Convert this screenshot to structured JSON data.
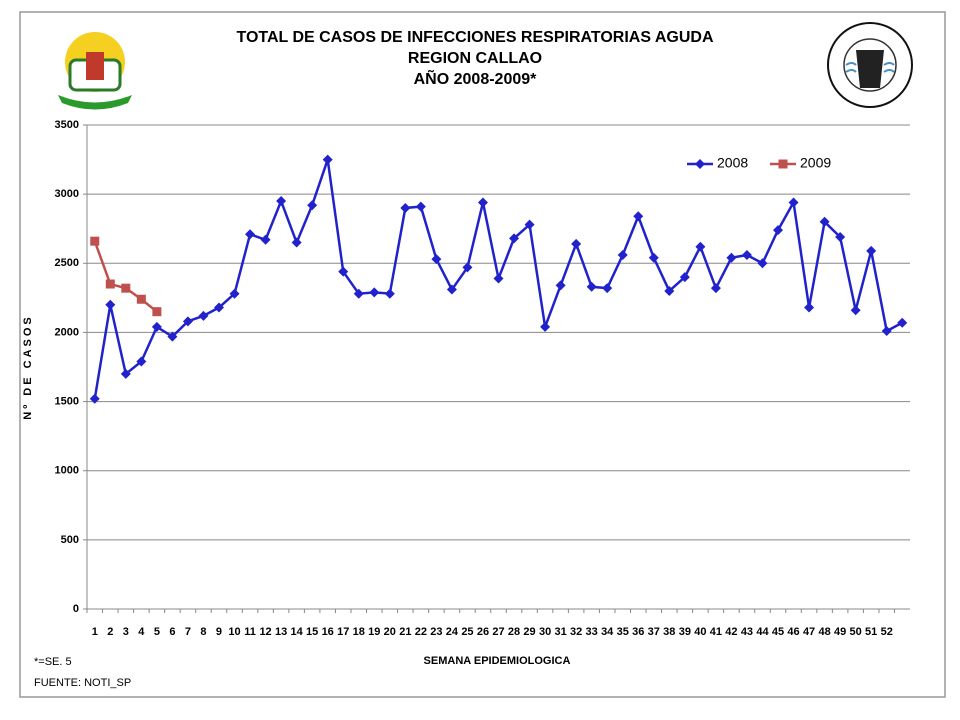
{
  "chart_data": {
    "type": "line",
    "title_lines": [
      "TOTAL DE CASOS DE INFECCIONES RESPIRATORIAS AGUDA",
      "REGION  CALLAO",
      "AÑO 2008-2009*"
    ],
    "y_label": "Nº DE CASOS",
    "x_label": "SEMANA EPIDEMIOLOGICA",
    "notes": [
      "*=SE. 5",
      "FUENTE: NOTI_SP"
    ],
    "categories": [
      "1",
      "2",
      "3",
      "4",
      "5",
      "6",
      "7",
      "8",
      "9",
      "10",
      "11",
      "12",
      "13",
      "14",
      "15",
      "16",
      "17",
      "18",
      "19",
      "20",
      "21",
      "22",
      "23",
      "24",
      "25",
      "26",
      "27",
      "28",
      "29",
      "30",
      "31",
      "32",
      "33",
      "34",
      "35",
      "36",
      "37",
      "38",
      "39",
      "40",
      "41",
      "42",
      "43",
      "44",
      "45",
      "46",
      "47",
      "48",
      "49",
      "50",
      "51",
      "52",
      null
    ],
    "series": [
      {
        "name": "2008",
        "color": "#2222cc",
        "marker": "diamond",
        "values": [
          1520,
          2200,
          1700,
          1790,
          2040,
          1970,
          2080,
          2120,
          2180,
          2280,
          2710,
          2670,
          2950,
          2650,
          2920,
          3250,
          2440,
          2280,
          2290,
          2280,
          2900,
          2910,
          2530,
          2310,
          2470,
          2940,
          2390,
          2680,
          2780,
          2040,
          2340,
          2640,
          2330,
          2320,
          2560,
          2840,
          2540,
          2300,
          2400,
          2620,
          2320,
          2540,
          2560,
          2500,
          2740,
          2940,
          2180,
          2800,
          2690,
          2160,
          2590,
          2010,
          2070
        ]
      },
      {
        "name": "2009",
        "color": "#c0504d",
        "marker": "square",
        "values": [
          2660,
          2350,
          2320,
          2240,
          2150,
          null,
          null,
          null,
          null,
          null,
          null,
          null,
          null,
          null,
          null,
          null,
          null,
          null,
          null,
          null,
          null,
          null,
          null,
          null,
          null,
          null,
          null,
          null,
          null,
          null,
          null,
          null,
          null,
          null,
          null,
          null,
          null,
          null,
          null,
          null,
          null,
          null,
          null,
          null,
          null,
          null,
          null,
          null,
          null,
          null,
          null,
          null,
          null
        ]
      }
    ],
    "ylim": [
      0,
      3500
    ],
    "yticks": [
      0,
      500,
      1000,
      1500,
      2000,
      2500,
      3000,
      3500
    ],
    "grid": true,
    "legend": "top-right"
  }
}
